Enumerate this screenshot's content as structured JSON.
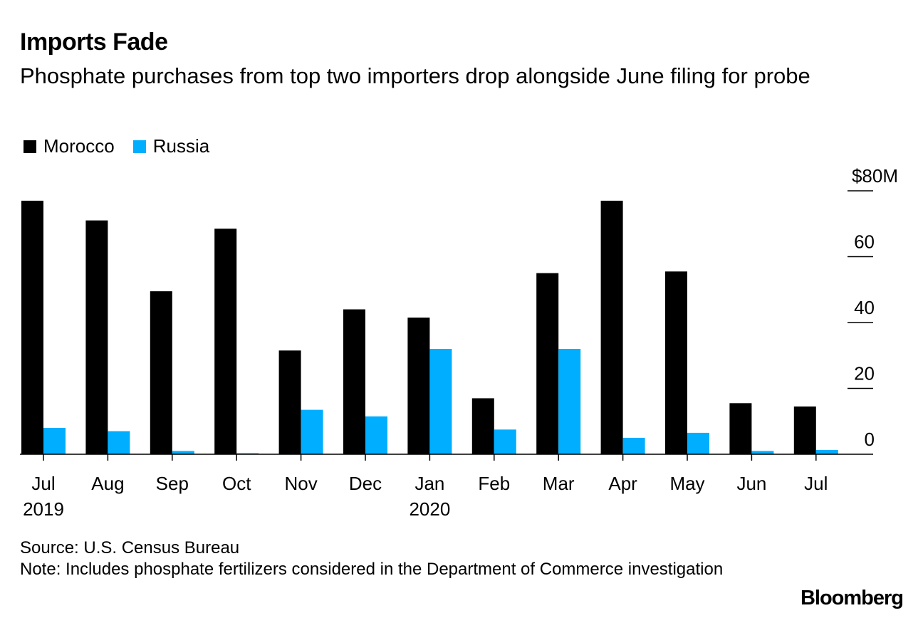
{
  "header": {
    "title": "Imports Fade",
    "subtitle": "Phosphate purchases from top two importers drop alongside June filing for probe"
  },
  "legend": [
    {
      "label": "Morocco",
      "color": "#000000"
    },
    {
      "label": "Russia",
      "color": "#00aeff"
    }
  ],
  "chart_data": {
    "type": "bar",
    "categories": [
      "Jul",
      "Aug",
      "Sep",
      "Oct",
      "Nov",
      "Dec",
      "Jan",
      "Feb",
      "Mar",
      "Apr",
      "May",
      "Jun",
      "Jul"
    ],
    "year_labels": [
      "2019",
      "",
      "",
      "",
      "",
      "",
      "2020",
      "",
      "",
      "",
      "",
      "",
      ""
    ],
    "series": [
      {
        "name": "Morocco",
        "color": "#000000",
        "values": [
          77,
          71,
          49.5,
          68.5,
          31.5,
          44,
          41.5,
          17,
          55,
          77,
          55.5,
          15.5,
          14.5
        ]
      },
      {
        "name": "Russia",
        "color": "#00aeff",
        "values": [
          8,
          7,
          1,
          0.3,
          13.5,
          11.5,
          32,
          7.5,
          32,
          5,
          6.5,
          1,
          1.3
        ]
      }
    ],
    "y_ticks": [
      "$80M",
      "60",
      "40",
      "20",
      "0"
    ],
    "ylim": [
      0,
      80
    ],
    "grid": false,
    "legend_position": "top-left"
  },
  "footer": {
    "source": "Source: U.S. Census Bureau",
    "note": "Note: Includes phosphate fertilizers considered in the Department of Commerce investigation"
  },
  "brand": "Bloomberg"
}
